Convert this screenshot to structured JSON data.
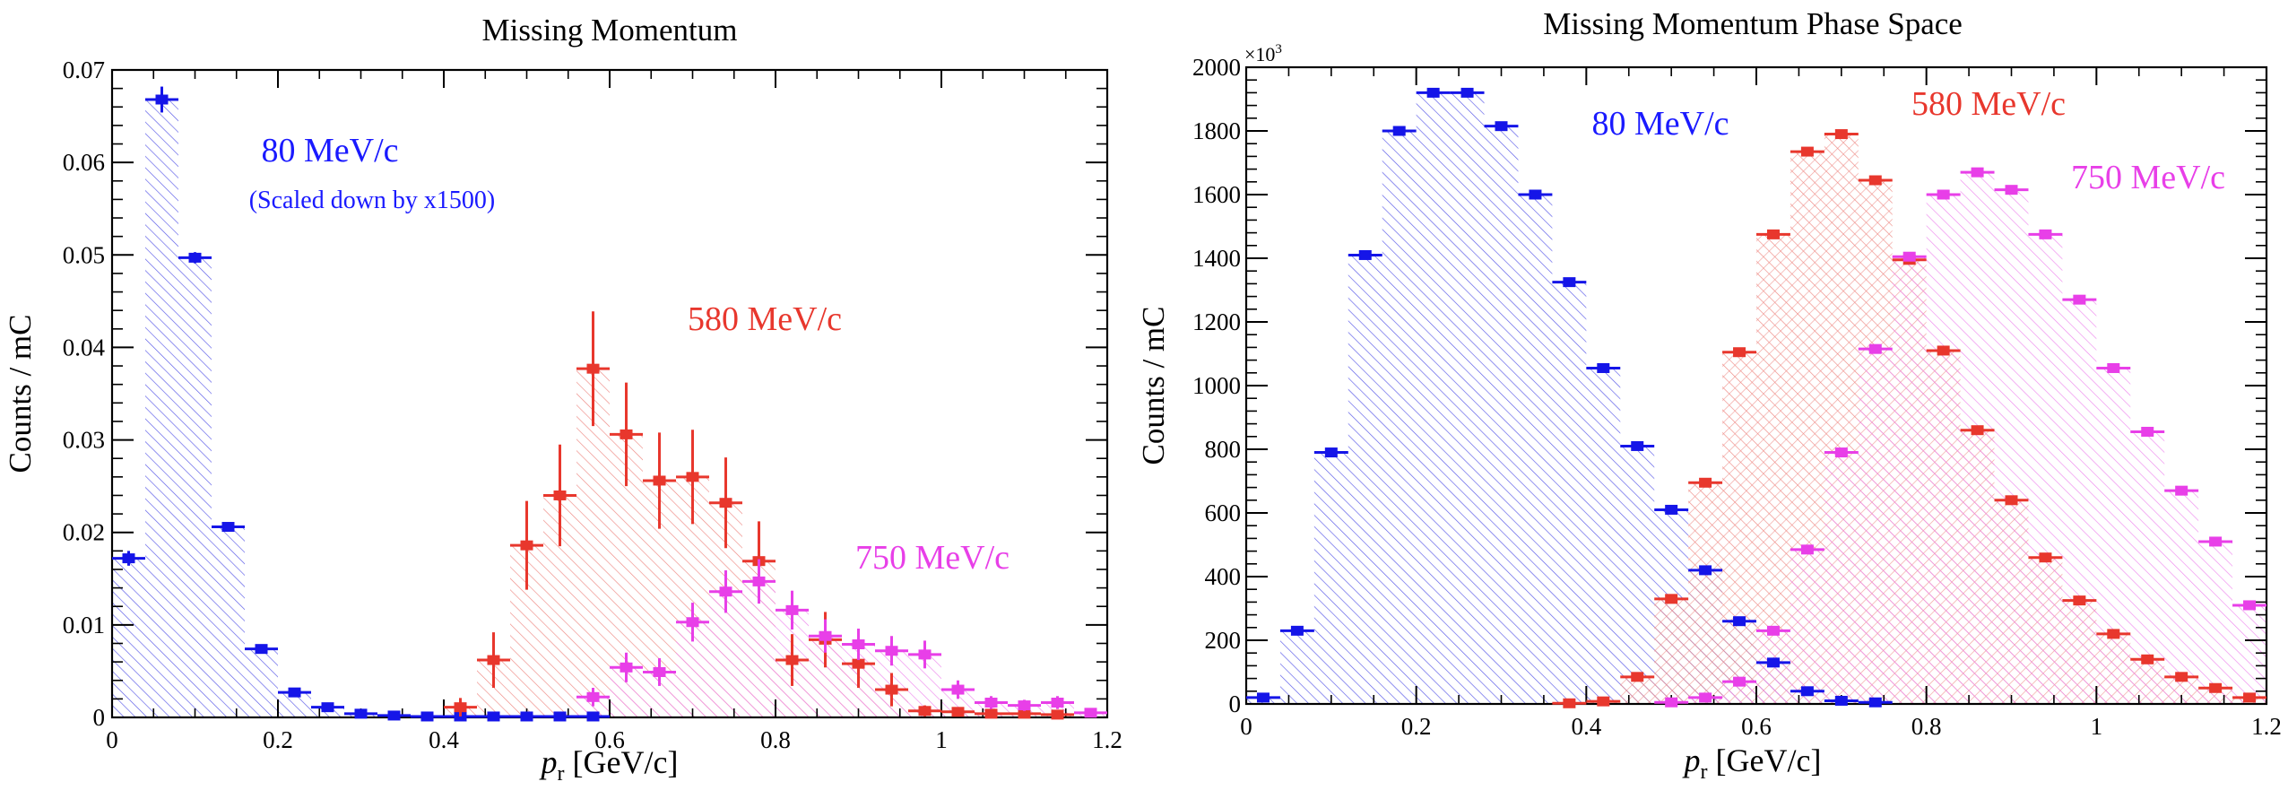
{
  "chart_data": [
    {
      "type": "histogram",
      "title": "Missing Momentum",
      "xlabel_italic": "p",
      "xlabel_sub": "r",
      "xlabel_rest": " [GeV/c]",
      "ylabel": "Counts / mC",
      "xlim": [
        0,
        1.2
      ],
      "ylim": [
        0,
        0.07
      ],
      "grid": false,
      "xticks": [
        "0",
        "0.2",
        "0.4",
        "0.6",
        "0.8",
        "1",
        "1.2"
      ],
      "yticks": [
        "0",
        "0.01",
        "0.02",
        "0.03",
        "0.04",
        "0.05",
        "0.06",
        "0.07"
      ],
      "bin_width": 0.04,
      "annotations": [
        {
          "text": "80 MeV/c",
          "color": "#1a1aff"
        },
        {
          "text": "(Scaled down by x1500)",
          "color": "#1a1aff"
        },
        {
          "text": "580 MeV/c",
          "color": "#e8372d"
        },
        {
          "text": "750 MeV/c",
          "color": "#e83fe8"
        }
      ],
      "series": [
        {
          "color": "#1515e8",
          "x": [
            0.02,
            0.06,
            0.1,
            0.14,
            0.18,
            0.22,
            0.26,
            0.3,
            0.34,
            0.38,
            0.42,
            0.46,
            0.5,
            0.54,
            0.58
          ],
          "values": [
            0.0172,
            0.0668,
            0.0497,
            0.0206,
            0.0074,
            0.0027,
            0.0011,
            0.0004,
            0.0002,
            0.0001,
            0.0001,
            0.0001,
            0.0001,
            0.0001,
            0.0001
          ],
          "errors": [
            0.0008,
            0.0014,
            0.0006,
            0.0004,
            0.0003,
            0.0002,
            0.0001,
            0.0001,
            0.0001,
            0.0001,
            0.0001,
            0.0001,
            0.0001,
            0.0001,
            0.0001
          ]
        },
        {
          "color": "#e8372d",
          "x": [
            0.42,
            0.46,
            0.5,
            0.54,
            0.58,
            0.62,
            0.66,
            0.7,
            0.74,
            0.78,
            0.82,
            0.86,
            0.9,
            0.94,
            0.98,
            1.02,
            1.06,
            1.1,
            1.14
          ],
          "values": [
            0.0011,
            0.0062,
            0.0186,
            0.024,
            0.0377,
            0.0306,
            0.0256,
            0.026,
            0.0232,
            0.0169,
            0.0062,
            0.0084,
            0.0058,
            0.003,
            0.0007,
            0.0006,
            0.0004,
            0.0004,
            0.0003
          ],
          "errors": [
            0.001,
            0.003,
            0.0048,
            0.0055,
            0.0062,
            0.0056,
            0.0052,
            0.0051,
            0.0049,
            0.0043,
            0.0028,
            0.003,
            0.0026,
            0.0018,
            0.0006,
            0.0005,
            0.0004,
            0.0004,
            0.0003
          ]
        },
        {
          "color": "#e83fe8",
          "x": [
            0.58,
            0.62,
            0.66,
            0.7,
            0.74,
            0.78,
            0.82,
            0.86,
            0.9,
            0.94,
            0.98,
            1.02,
            1.06,
            1.1,
            1.14,
            1.18
          ],
          "values": [
            0.0022,
            0.0054,
            0.0049,
            0.0103,
            0.0136,
            0.0147,
            0.0116,
            0.0088,
            0.0079,
            0.0072,
            0.0068,
            0.003,
            0.0016,
            0.0013,
            0.0016,
            0.0005
          ],
          "errors": [
            0.001,
            0.0016,
            0.0015,
            0.0021,
            0.0023,
            0.0024,
            0.0021,
            0.0018,
            0.0017,
            0.0016,
            0.0015,
            0.001,
            0.0007,
            0.0006,
            0.0007,
            0.0004
          ]
        }
      ]
    },
    {
      "type": "histogram",
      "title": "Missing Momentum Phase Space",
      "xlabel_italic": "p",
      "xlabel_sub": "r",
      "xlabel_rest": " [GeV/c]",
      "ylabel": "Counts / mC",
      "exponent_label_base": "×10",
      "exponent_label_power": "3",
      "xlim": [
        0,
        1.2
      ],
      "ylim": [
        0,
        2000
      ],
      "grid": false,
      "xticks": [
        "0",
        "0.2",
        "0.4",
        "0.6",
        "0.8",
        "1",
        "1.2"
      ],
      "yticks": [
        "0",
        "200",
        "400",
        "600",
        "800",
        "1000",
        "1200",
        "1400",
        "1600",
        "1800",
        "2000"
      ],
      "bin_width": 0.04,
      "annotations": [
        {
          "text": "80 MeV/c",
          "color": "#1a1aff"
        },
        {
          "text": "580 MeV/c",
          "color": "#e8372d"
        },
        {
          "text": "750 MeV/c",
          "color": "#e83fe8"
        }
      ],
      "series": [
        {
          "color": "#1515e8",
          "x": [
            0.02,
            0.06,
            0.1,
            0.14,
            0.18,
            0.22,
            0.26,
            0.3,
            0.34,
            0.38,
            0.42,
            0.46,
            0.5,
            0.54,
            0.58,
            0.62,
            0.66,
            0.7,
            0.74
          ],
          "values": [
            20,
            230,
            790,
            1410,
            1800,
            1920,
            1920,
            1815,
            1600,
            1325,
            1055,
            810,
            610,
            420,
            260,
            130,
            40,
            10,
            5
          ],
          "errors": [
            5,
            8,
            10,
            12,
            12,
            12,
            12,
            12,
            12,
            12,
            10,
            10,
            9,
            8,
            7,
            5,
            3,
            2,
            2
          ]
        },
        {
          "color": "#e8372d",
          "x": [
            0.38,
            0.42,
            0.46,
            0.5,
            0.54,
            0.58,
            0.62,
            0.66,
            0.7,
            0.74,
            0.78,
            0.82,
            0.86,
            0.9,
            0.94,
            0.98,
            1.02,
            1.06,
            1.1,
            1.14,
            1.18
          ],
          "values": [
            2,
            8,
            85,
            330,
            695,
            1105,
            1475,
            1735,
            1790,
            1645,
            1395,
            1110,
            860,
            640,
            460,
            325,
            220,
            140,
            85,
            50,
            20
          ],
          "errors": [
            2,
            3,
            6,
            8,
            10,
            12,
            12,
            12,
            12,
            12,
            12,
            12,
            10,
            9,
            8,
            7,
            6,
            5,
            4,
            3,
            2
          ]
        },
        {
          "color": "#e83fe8",
          "x": [
            0.5,
            0.54,
            0.58,
            0.62,
            0.66,
            0.7,
            0.74,
            0.78,
            0.82,
            0.86,
            0.9,
            0.94,
            0.98,
            1.02,
            1.06,
            1.1,
            1.14,
            1.18
          ],
          "values": [
            5,
            20,
            70,
            230,
            485,
            790,
            1115,
            1405,
            1600,
            1670,
            1615,
            1475,
            1270,
            1055,
            855,
            670,
            510,
            310
          ],
          "errors": [
            2,
            3,
            5,
            7,
            9,
            10,
            12,
            12,
            12,
            12,
            12,
            12,
            12,
            10,
            10,
            9,
            8,
            7
          ]
        }
      ]
    }
  ]
}
